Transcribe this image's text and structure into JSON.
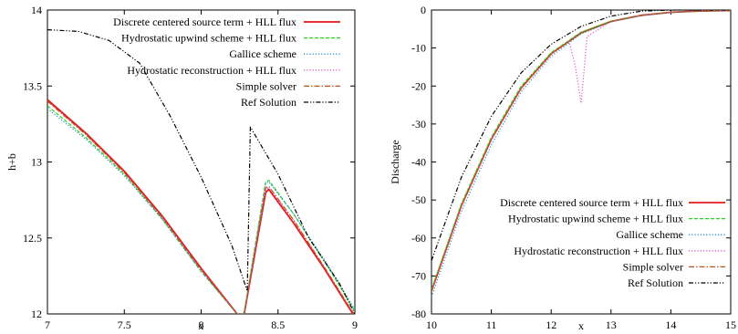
{
  "chart_data": [
    {
      "type": "line",
      "title": "",
      "xlabel": "x",
      "ylabel": "h+b",
      "xlim": [
        7,
        9
      ],
      "ylim": [
        12,
        14
      ],
      "xticks": [
        "7",
        "7.5",
        "8",
        "8.5",
        "9"
      ],
      "yticks": [
        "12",
        "12.5",
        "13",
        "13.5",
        "14"
      ],
      "legend_position": "top-right",
      "grid": false,
      "series": [
        {
          "name": "Discrete centered source term + HLL flux",
          "color": "#e41a1c",
          "dash": "solid",
          "x": [
            7,
            7.25,
            7.5,
            7.75,
            8,
            8.25,
            8.28,
            8.42,
            8.44,
            8.6,
            8.8,
            9
          ],
          "y": [
            13.41,
            13.19,
            12.94,
            12.64,
            12.3,
            11.98,
            12.0,
            12.8,
            12.82,
            12.6,
            12.3,
            11.98
          ]
        },
        {
          "name": "Hydrostatic upwind scheme + HLL flux",
          "color": "#2bd11f",
          "dash": "dash",
          "x": [
            7,
            7.25,
            7.5,
            7.75,
            8,
            8.25,
            8.28,
            8.42,
            8.44,
            8.6,
            8.8,
            9
          ],
          "y": [
            13.37,
            13.16,
            12.92,
            12.62,
            12.28,
            11.98,
            12.01,
            12.87,
            12.88,
            12.66,
            12.35,
            12.02
          ]
        },
        {
          "name": "Gallice scheme",
          "color": "#2f8fd8",
          "dash": "dot",
          "x": [
            7,
            7.25,
            7.5,
            7.75,
            8,
            8.25,
            8.28,
            8.42,
            8.44,
            8.6,
            8.8,
            9
          ],
          "y": [
            13.35,
            13.15,
            12.91,
            12.62,
            12.28,
            11.98,
            12.01,
            12.86,
            12.87,
            12.66,
            12.36,
            12.03
          ]
        },
        {
          "name": "Hydrostatic reconstruction + HLL flux",
          "color": "#e055c8",
          "dash": "dot",
          "x": [
            7,
            7.25,
            7.5,
            7.75,
            8,
            8.25,
            8.28,
            8.42,
            8.44,
            8.6,
            8.8,
            9
          ],
          "y": [
            13.4,
            13.18,
            12.93,
            12.63,
            12.29,
            11.98,
            12.0,
            12.82,
            12.83,
            12.62,
            12.31,
            11.99
          ]
        },
        {
          "name": "Simple solver",
          "color": "#b4581c",
          "dash": "dashdot",
          "x": [
            7,
            7.25,
            7.5,
            7.75,
            8,
            8.25,
            8.28,
            8.42,
            8.44,
            8.6,
            8.8,
            9
          ],
          "y": [
            13.4,
            13.18,
            12.93,
            12.63,
            12.29,
            11.98,
            12.0,
            12.83,
            12.84,
            12.62,
            12.31,
            11.99
          ]
        },
        {
          "name": "Ref Solution",
          "color": "#000000",
          "dash": "dashdotdot",
          "x": [
            7,
            7.2,
            7.4,
            7.6,
            7.8,
            8.0,
            8.2,
            8.3,
            8.32,
            8.5,
            8.7,
            8.9,
            9
          ],
          "y": [
            13.87,
            13.86,
            13.8,
            13.65,
            13.3,
            12.9,
            12.45,
            12.15,
            13.23,
            12.92,
            12.5,
            12.2,
            12.0
          ]
        }
      ]
    },
    {
      "type": "line",
      "title": "",
      "xlabel": "x",
      "ylabel": "Discharge",
      "xlim": [
        10,
        15
      ],
      "ylim": [
        -80,
        0
      ],
      "xticks": [
        "10",
        "11",
        "12",
        "13",
        "14",
        "15"
      ],
      "yticks": [
        "-80",
        "-70",
        "-60",
        "-50",
        "-40",
        "-30",
        "-20",
        "-10",
        "0"
      ],
      "legend_position": "bottom-right",
      "grid": false,
      "series": [
        {
          "name": "Discrete centered source term + HLL flux",
          "color": "#e41a1c",
          "dash": "solid",
          "x": [
            10,
            10.5,
            11,
            11.5,
            12,
            12.5,
            13,
            13.5,
            14,
            14.5,
            15
          ],
          "y": [
            -74,
            -51.5,
            -34,
            -20.5,
            -11.5,
            -6,
            -3,
            -1.4,
            -0.6,
            -0.25,
            -0.1
          ]
        },
        {
          "name": "Hydrostatic upwind scheme + HLL flux",
          "color": "#2bd11f",
          "dash": "dash",
          "x": [
            10,
            10.5,
            11,
            11.5,
            12,
            12.5,
            13,
            13.5,
            14,
            14.5,
            15
          ],
          "y": [
            -73.5,
            -51,
            -33.5,
            -20,
            -11.2,
            -5.8,
            -2.9,
            -1.4,
            -0.6,
            -0.25,
            -0.1
          ]
        },
        {
          "name": "Gallice scheme",
          "color": "#2f8fd8",
          "dash": "dot",
          "x": [
            10,
            10.5,
            11,
            11.5,
            12,
            12.5,
            13,
            13.5,
            14,
            14.5,
            15
          ],
          "y": [
            -75.5,
            -53,
            -35.5,
            -21.5,
            -12.2,
            -6.3,
            -3.1,
            -1.5,
            -0.65,
            -0.28,
            -0.1
          ]
        },
        {
          "name": "Hydrostatic reconstruction + HLL flux",
          "color": "#e055c8",
          "dash": "dot",
          "x": [
            10,
            10.5,
            11,
            11.5,
            12,
            12.3,
            12.4,
            12.5,
            12.6,
            13,
            13.5,
            14,
            14.5,
            15
          ],
          "y": [
            -74,
            -51.5,
            -34,
            -20.5,
            -11.5,
            -8.3,
            -14.5,
            -24.5,
            -7,
            -3,
            -1.4,
            -0.6,
            -0.25,
            -0.1
          ]
        },
        {
          "name": "Simple solver",
          "color": "#b4581c",
          "dash": "dashdot",
          "x": [
            10,
            10.5,
            11,
            11.5,
            12,
            12.5,
            13,
            13.5,
            14,
            14.5,
            15
          ],
          "y": [
            -74,
            -51.5,
            -34,
            -20.5,
            -11.5,
            -6,
            -3,
            -1.4,
            -0.6,
            -0.25,
            -0.1
          ]
        },
        {
          "name": "Ref Solution",
          "color": "#000000",
          "dash": "dashdotdot",
          "x": [
            10,
            10.5,
            11,
            11.5,
            12,
            12.5,
            13,
            13.5,
            14,
            14.5,
            15
          ],
          "y": [
            -66,
            -44,
            -28,
            -16.5,
            -9,
            -4.3,
            -1.6,
            -0.3,
            0,
            0,
            0
          ]
        }
      ]
    }
  ]
}
